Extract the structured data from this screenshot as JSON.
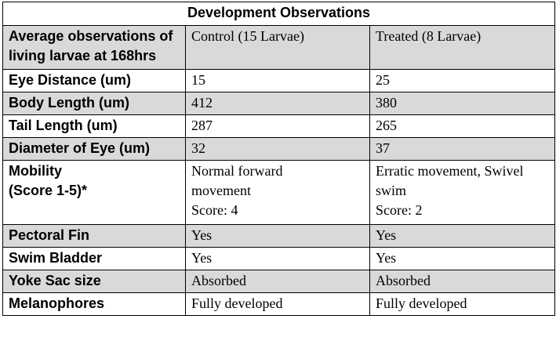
{
  "table": {
    "title": "Development Observations",
    "header": {
      "label": "Average observations of\nliving larvae at 168hrs",
      "control": "Control (15 Larvae)",
      "treated": "Treated (8 Larvae)"
    },
    "rows": [
      {
        "label": "Eye Distance (um)",
        "control": "15",
        "treated": "25"
      },
      {
        "label": "Body Length (um)",
        "control": "412",
        "treated": "380"
      },
      {
        "label": "Tail Length (um)",
        "control": "287",
        "treated": "265"
      },
      {
        "label": "Diameter of Eye (um)",
        "control": "32",
        "treated": "37"
      },
      {
        "label": "Mobility\n(Score 1-5)*",
        "control": "Normal forward\nmovement\nScore: 4",
        "treated": "Erratic movement, Swivel\nswim\nScore: 2"
      },
      {
        "label": "Pectoral Fin",
        "control": "Yes",
        "treated": "Yes"
      },
      {
        "label": "Swim Bladder",
        "control": "Yes",
        "treated": "Yes"
      },
      {
        "label": "Yoke Sac size",
        "control": "Absorbed",
        "treated": "Absorbed"
      },
      {
        "label": "Melanophores",
        "control": "Fully developed",
        "treated": "Fully developed"
      }
    ]
  }
}
